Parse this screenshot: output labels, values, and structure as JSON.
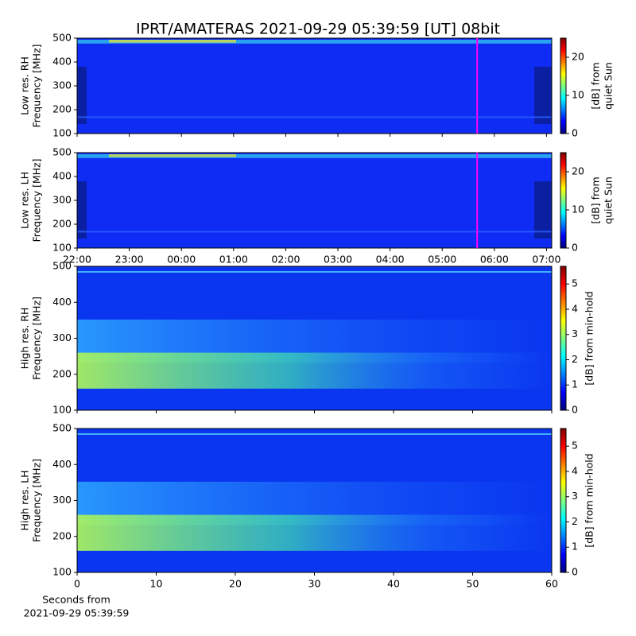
{
  "title": "IPRT/AMATERAS 2021-09-29 05:39:59 [UT]   08bit",
  "chart_data": [
    {
      "type": "heatmap",
      "ylabel": [
        "Low res. RH",
        "Frequency [MHz]"
      ],
      "resolution": "low",
      "xlim": [
        22,
        31.1
      ],
      "xticks": [
        {
          "value": 22,
          "label": "22:00"
        },
        {
          "value": 23,
          "label": "23:00"
        },
        {
          "value": 24,
          "label": "00:00"
        },
        {
          "value": 25,
          "label": "01:00"
        },
        {
          "value": 26,
          "label": "02:00"
        },
        {
          "value": 27,
          "label": "03:00"
        },
        {
          "value": 28,
          "label": "04:00"
        },
        {
          "value": 29,
          "label": "05:00"
        },
        {
          "value": 30,
          "label": "06:00"
        },
        {
          "value": 31,
          "label": "07:00"
        }
      ],
      "show_xtick_labels": false,
      "ylim": [
        100,
        500
      ],
      "yticks": [
        100,
        200,
        300,
        400,
        500
      ],
      "marker_x": 29.67,
      "marker_color": "#ff00ff",
      "colormap": "jet",
      "clim": [
        0,
        25
      ],
      "cticks": [
        0,
        10,
        20
      ],
      "clabel": [
        "[dB] from",
        "quiet Sun"
      ]
    },
    {
      "type": "heatmap",
      "ylabel": [
        "Low res. LH",
        "Frequency [MHz]"
      ],
      "resolution": "low",
      "xlim": [
        22,
        31.1
      ],
      "xticks": [
        {
          "value": 22,
          "label": "22:00"
        },
        {
          "value": 23,
          "label": "23:00"
        },
        {
          "value": 24,
          "label": "00:00"
        },
        {
          "value": 25,
          "label": "01:00"
        },
        {
          "value": 26,
          "label": "02:00"
        },
        {
          "value": 27,
          "label": "03:00"
        },
        {
          "value": 28,
          "label": "04:00"
        },
        {
          "value": 29,
          "label": "05:00"
        },
        {
          "value": 30,
          "label": "06:00"
        },
        {
          "value": 31,
          "label": "07:00"
        }
      ],
      "show_xtick_labels": true,
      "ylim": [
        100,
        500
      ],
      "yticks": [
        100,
        200,
        300,
        400,
        500
      ],
      "marker_x": 29.67,
      "marker_color": "#ff00ff",
      "colormap": "jet",
      "clim": [
        0,
        25
      ],
      "cticks": [
        0,
        10,
        20
      ],
      "clabel": [
        "[dB] from",
        "quiet Sun"
      ]
    },
    {
      "type": "heatmap",
      "ylabel": [
        "High res. RH",
        "Frequency [MHz]"
      ],
      "resolution": "high",
      "xlim": [
        0,
        60
      ],
      "xticks": [
        0,
        10,
        20,
        30,
        40,
        50,
        60
      ],
      "show_xtick_labels": false,
      "ylim": [
        100,
        500
      ],
      "yticks": [
        100,
        200,
        300,
        400,
        500
      ],
      "colormap": "jet",
      "clim": [
        0,
        5.7
      ],
      "cticks": [
        0,
        1,
        2,
        3,
        4,
        5
      ],
      "clabel": [
        "[dB] from min-hold"
      ]
    },
    {
      "type": "heatmap",
      "ylabel": [
        "High res. LH",
        "Frequency [MHz]"
      ],
      "resolution": "high",
      "xlim": [
        0,
        60
      ],
      "xticks": [
        0,
        10,
        20,
        30,
        40,
        50,
        60
      ],
      "show_xtick_labels": true,
      "xlabel": [
        "Seconds from",
        "2021-09-29 05:39:59"
      ],
      "ylim": [
        100,
        500
      ],
      "yticks": [
        100,
        200,
        300,
        400,
        500
      ],
      "colormap": "jet",
      "clim": [
        0,
        5.7
      ],
      "cticks": [
        0,
        1,
        2,
        3,
        4,
        5
      ],
      "clabel": [
        "[dB] from min-hold"
      ]
    }
  ]
}
